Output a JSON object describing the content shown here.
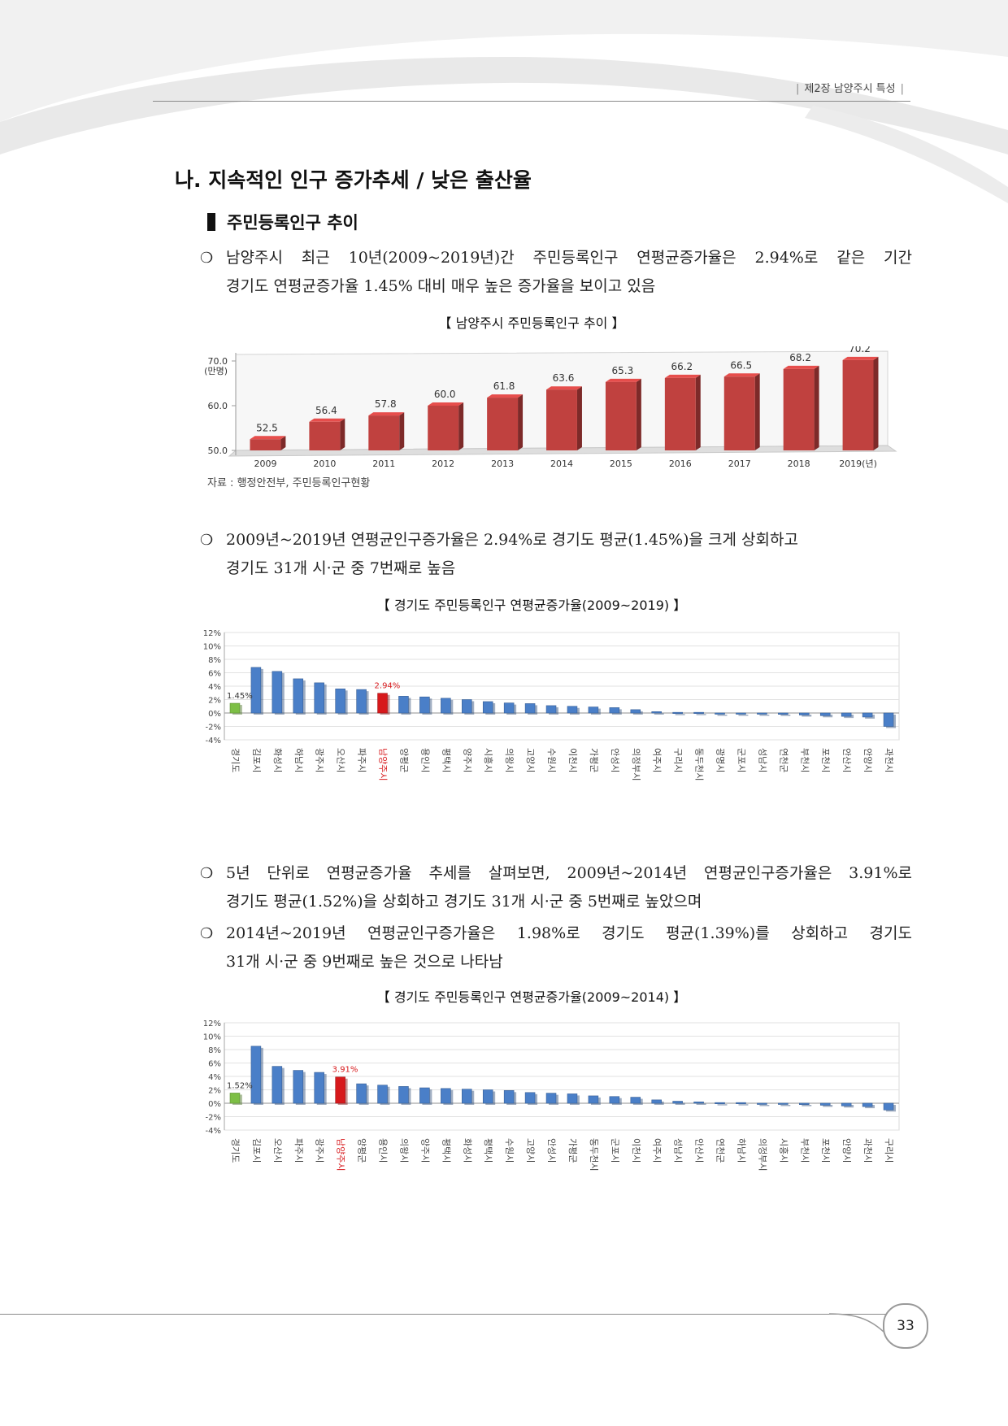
{
  "header": {
    "chapter": "제2장 남양주시 특성"
  },
  "section_title": "나. 지속적인 인구 증가추세 / 낮은 출산율",
  "subsection_title": "주민등록인구 추이",
  "paragraphs": {
    "p1": {
      "bullet": "❍",
      "lines": [
        "남양주시 최근 10년(2009~2019년)간 주민등록인구 연평균증가율은 2.94%로 같은 기간",
        "경기도 연평균증가율 1.45% 대비 매우 높은 증가율을 보이고 있음"
      ]
    },
    "p2": {
      "bullet": "❍",
      "lines": [
        "2009년~2019년 연평균인구증가율은 2.94%로 경기도 평균(1.45%)을 크게 상회하고",
        "경기도 31개 시·군 중 7번째로 높음"
      ]
    },
    "p3": {
      "bullet": "❍",
      "lines": [
        "5년 단위로 연평균증가율 추세를 살펴보면, 2009년~2014년 연평균인구증가율은 3.91%로",
        "경기도 평균(1.52%)을 상회하고 경기도 31개 시·군 중 5번째로 높았으며"
      ]
    },
    "p4": {
      "bullet": "❍",
      "lines": [
        "2014년~2019년 연평균인구증가율은 1.98%로 경기도 평균(1.39%)를 상회하고 경기도",
        "31개 시·군 중 9번째로 높은 것으로 나타남"
      ]
    }
  },
  "captions": {
    "chart1": "【 남양주시 주민등록인구 추이 】",
    "chart2": "【 경기도 주민등록인구 연평균증가율(2009~2019) 】",
    "chart3": "【 경기도 주민등록인구 연평균증가율(2009~2014) 】"
  },
  "source": "자료 : 행정안전부, 주민등록인구현황",
  "page_number": "33",
  "chart_data": [
    {
      "type": "bar",
      "title": "【 남양주시 주민등록인구 추이 】",
      "ylabel": "(만명)",
      "ylim": [
        50.0,
        70.0
      ],
      "yticks": [
        "50.0",
        "60.0",
        "70.0"
      ],
      "categories": [
        "2009",
        "2010",
        "2011",
        "2012",
        "2013",
        "2014",
        "2015",
        "2016",
        "2017",
        "2018",
        "2019(년)"
      ],
      "values": [
        52.5,
        56.4,
        57.8,
        60.0,
        61.8,
        63.6,
        65.3,
        66.2,
        66.5,
        68.2,
        70.2
      ],
      "labels": [
        "52.5",
        "56.4",
        "57.8",
        "60.0",
        "61.8",
        "63.6",
        "65.3",
        "66.2",
        "66.5",
        "68.2",
        "70.2"
      ],
      "color": "#c0413f",
      "grid": false
    },
    {
      "type": "bar",
      "title": "【 경기도 주민등록인구 연평균증가율(2009~2019) 】",
      "ylim": [
        -4,
        12
      ],
      "yticks": [
        "-4%",
        "-2%",
        "0%",
        "2%",
        "4%",
        "6%",
        "8%",
        "10%",
        "12%"
      ],
      "categories": [
        "경기도",
        "김포시",
        "화성시",
        "하남시",
        "광주시",
        "오산시",
        "파주시",
        "남양주시",
        "양평군",
        "용인시",
        "평택시",
        "양주시",
        "시흥시",
        "의왕시",
        "고양시",
        "수원시",
        "이천시",
        "가평군",
        "안성시",
        "의정부시",
        "여주시",
        "구리시",
        "동두천시",
        "광명시",
        "군포시",
        "성남시",
        "연천군",
        "부천시",
        "포천시",
        "안산시",
        "안양시",
        "과천시"
      ],
      "values": [
        1.45,
        6.8,
        6.2,
        5.1,
        4.5,
        3.6,
        3.5,
        2.94,
        2.5,
        2.4,
        2.2,
        2.0,
        1.7,
        1.5,
        1.4,
        1.1,
        1.0,
        0.9,
        0.8,
        0.5,
        0.2,
        0.1,
        0.1,
        0.0,
        0.0,
        -0.1,
        -0.2,
        -0.3,
        -0.4,
        -0.5,
        -0.6,
        -2.0
      ],
      "labels": {
        "0": "1.45%",
        "7": "2.94%"
      },
      "colors": {
        "default": "#4a7fc8",
        "province": "#7dbf45",
        "highlight": "#d7191c"
      },
      "highlight_index": 7,
      "province_index": 0,
      "grid": true
    },
    {
      "type": "bar",
      "title": "【 경기도 주민등록인구 연평균증가율(2009~2014) 】",
      "ylim": [
        -4,
        12
      ],
      "yticks": [
        "-4%",
        "-2%",
        "0%",
        "2%",
        "4%",
        "6%",
        "8%",
        "10%",
        "12%"
      ],
      "categories": [
        "경기도",
        "김포시",
        "오산시",
        "파주시",
        "광주시",
        "남양주시",
        "양평군",
        "용인시",
        "의왕시",
        "양주시",
        "평택시",
        "화성시",
        "평택시",
        "수원시",
        "고양시",
        "안성시",
        "가평군",
        "동두천시",
        "군포시",
        "이천시",
        "여주시",
        "성남시",
        "안산시",
        "연천군",
        "하남시",
        "의정부시",
        "시흥시",
        "부천시",
        "포천시",
        "안양시",
        "과천시",
        "구리시"
      ],
      "values": [
        1.52,
        8.5,
        5.5,
        4.9,
        4.6,
        3.91,
        2.9,
        2.7,
        2.5,
        2.3,
        2.2,
        2.1,
        2.0,
        1.9,
        1.6,
        1.5,
        1.4,
        1.1,
        1.0,
        0.9,
        0.5,
        0.3,
        0.2,
        0.1,
        0.1,
        0.0,
        -0.1,
        -0.2,
        -0.3,
        -0.4,
        -0.5,
        -1.0
      ],
      "labels": {
        "0": "1.52%",
        "5": "3.91%"
      },
      "colors": {
        "default": "#4a7fc8",
        "province": "#7dbf45",
        "highlight": "#d7191c"
      },
      "highlight_index": 5,
      "province_index": 0,
      "grid": true
    }
  ]
}
